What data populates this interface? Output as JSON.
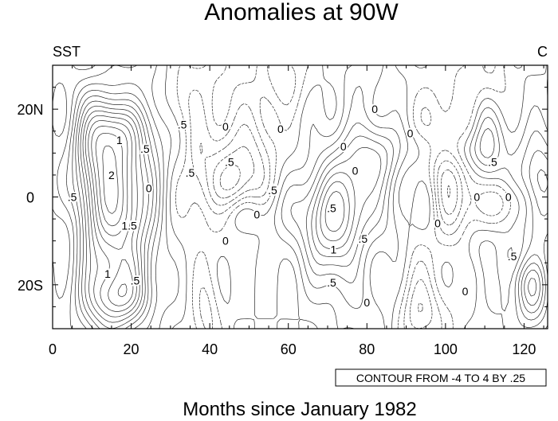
{
  "chart_data": {
    "type": "contour",
    "title": "Anomalies at 90W",
    "left_label": "SST",
    "right_label": "C",
    "xlabel": "Months since January 1982",
    "ylabel": "",
    "x_range": [
      0,
      126
    ],
    "y_range": [
      -30,
      30
    ],
    "x_ticks": [
      {
        "value": 0,
        "label": "0"
      },
      {
        "value": 20,
        "label": "20"
      },
      {
        "value": 40,
        "label": "40"
      },
      {
        "value": 60,
        "label": "60"
      },
      {
        "value": 80,
        "label": "80"
      },
      {
        "value": 100,
        "label": "100"
      },
      {
        "value": 120,
        "label": "120"
      }
    ],
    "y_ticks": [
      {
        "value": 20,
        "label": "20N"
      },
      {
        "value": 0,
        "label": "0"
      },
      {
        "value": -20,
        "label": "20S"
      }
    ],
    "note": "CONTOUR FROM -4 TO 4 BY .25",
    "contour_levels": {
      "min": -4,
      "max": 4,
      "step": 0.25
    },
    "contour_labels": [
      {
        "x": 5,
        "y": 0,
        "text": ".5"
      },
      {
        "x": 17,
        "y": 13,
        "text": "1"
      },
      {
        "x": 15,
        "y": 5,
        "text": "2"
      },
      {
        "x": 19.5,
        "y": -6.5,
        "text": "1.5"
      },
      {
        "x": 14,
        "y": -17.5,
        "text": "1"
      },
      {
        "x": 21,
        "y": -19,
        "text": ".5"
      },
      {
        "x": 23.5,
        "y": 11,
        "text": ".5"
      },
      {
        "x": 24.5,
        "y": 2,
        "text": "0"
      },
      {
        "x": 33,
        "y": 16.5,
        "text": ".5"
      },
      {
        "x": 35,
        "y": 5.5,
        "text": ".5"
      },
      {
        "x": 44,
        "y": 16,
        "text": "0"
      },
      {
        "x": 45,
        "y": 8,
        "text": ".5"
      },
      {
        "x": 56,
        "y": 1.5,
        "text": ".5"
      },
      {
        "x": 52,
        "y": -4,
        "text": "0"
      },
      {
        "x": 44,
        "y": -10,
        "text": "0"
      },
      {
        "x": 58,
        "y": 15.5,
        "text": "0"
      },
      {
        "x": 74,
        "y": 11.5,
        "text": "0"
      },
      {
        "x": 77,
        "y": 6,
        "text": "0"
      },
      {
        "x": 71,
        "y": -2.5,
        "text": ".5"
      },
      {
        "x": 79,
        "y": -9.5,
        "text": ".5"
      },
      {
        "x": 71.5,
        "y": -12,
        "text": "1"
      },
      {
        "x": 82,
        "y": 20,
        "text": "0"
      },
      {
        "x": 91,
        "y": 14.5,
        "text": "0"
      },
      {
        "x": 98,
        "y": -6,
        "text": "0"
      },
      {
        "x": 71,
        "y": -19.5,
        "text": ".5"
      },
      {
        "x": 80,
        "y": -24,
        "text": "0"
      },
      {
        "x": 112,
        "y": 8,
        "text": ".5"
      },
      {
        "x": 108,
        "y": 0,
        "text": "0"
      },
      {
        "x": 116,
        "y": 0,
        "text": "0"
      },
      {
        "x": 105,
        "y": -21.5,
        "text": "0"
      },
      {
        "x": 117,
        "y": -13.5,
        "text": ".5"
      }
    ]
  }
}
